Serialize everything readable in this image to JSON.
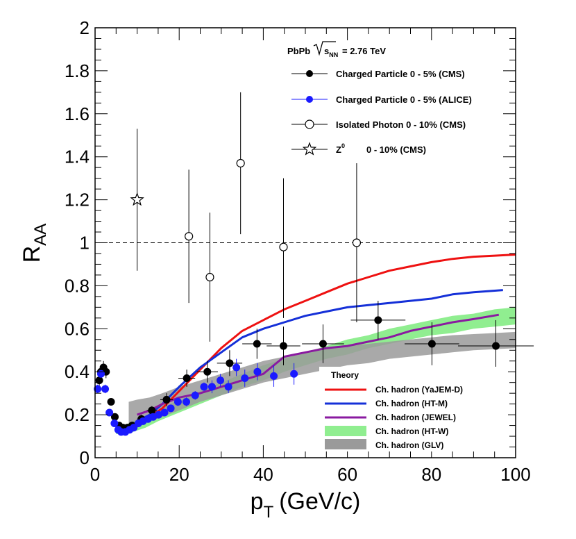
{
  "chart_data": {
    "type": "scatter",
    "xlabel": "p",
    "xlabel_sub": "T",
    "xlabel_unit": "(GeV/c)",
    "ylabel": "R",
    "ylabel_sub": "AA",
    "xlim": [
      0,
      100
    ],
    "ylim": [
      0,
      2
    ],
    "x_ticks": [
      0,
      20,
      40,
      60,
      80,
      100
    ],
    "y_ticks": [
      0,
      0.2,
      0.4,
      0.6,
      0.8,
      1,
      1.2,
      1.4,
      1.6,
      1.8,
      2
    ],
    "reference_line": 1,
    "header": "PbPb",
    "header_sqrt": "s",
    "header_sub": "NN",
    "header_value": "= 2.76 TeV",
    "theory_title": "Theory",
    "series": [
      {
        "name": "Charged Particle 0 - 5% (CMS)",
        "kind": "points",
        "marker": "filled-circle",
        "color": "#000000",
        "points": [
          {
            "x": 1.0,
            "y": 0.36,
            "ey": 0.03,
            "ex": 0
          },
          {
            "x": 1.4,
            "y": 0.4,
            "ey": 0.03,
            "ex": 0
          },
          {
            "x": 2.0,
            "y": 0.42,
            "ey": 0.03,
            "ex": 0
          },
          {
            "x": 2.6,
            "y": 0.4,
            "ey": 0.03,
            "ex": 0
          },
          {
            "x": 3.8,
            "y": 0.26,
            "ey": 0.015,
            "ex": 0
          },
          {
            "x": 4.7,
            "y": 0.19,
            "ey": 0.01,
            "ex": 0
          },
          {
            "x": 5.7,
            "y": 0.15,
            "ey": 0.01,
            "ex": 0
          },
          {
            "x": 6.6,
            "y": 0.14,
            "ey": 0.01,
            "ex": 0
          },
          {
            "x": 7.7,
            "y": 0.14,
            "ey": 0.01,
            "ex": 0
          },
          {
            "x": 8.8,
            "y": 0.15,
            "ey": 0.01,
            "ex": 0
          },
          {
            "x": 11.0,
            "y": 0.18,
            "ey": 0.02,
            "ex": 1.0
          },
          {
            "x": 13.5,
            "y": 0.22,
            "ey": 0.02,
            "ex": 1.2
          },
          {
            "x": 17.0,
            "y": 0.27,
            "ey": 0.03,
            "ex": 1.5
          },
          {
            "x": 21.8,
            "y": 0.37,
            "ey": 0.04,
            "ex": 2.0
          },
          {
            "x": 26.7,
            "y": 0.4,
            "ey": 0.05,
            "ex": 2.5
          },
          {
            "x": 32.0,
            "y": 0.44,
            "ey": 0.06,
            "ex": 3.0
          },
          {
            "x": 38.5,
            "y": 0.53,
            "ey": 0.07,
            "ex": 3.5
          },
          {
            "x": 44.8,
            "y": 0.52,
            "ey": 0.09,
            "ex": 4.0
          },
          {
            "x": 54.2,
            "y": 0.53,
            "ey": 0.09,
            "ex": 5.0
          },
          {
            "x": 67.3,
            "y": 0.64,
            "ey": 0.09,
            "ex": 6.5
          },
          {
            "x": 80.1,
            "y": 0.53,
            "ey": 0.1,
            "ex": 6.5
          },
          {
            "x": 95.3,
            "y": 0.52,
            "ey": 0.12,
            "ex": 9.0
          }
        ]
      },
      {
        "name": "Charged Particle 0 - 5% (ALICE)",
        "kind": "points",
        "marker": "filled-circle",
        "color": "#1a1aff",
        "points": [
          {
            "x": 0.6,
            "y": 0.32,
            "ey": 0.02,
            "ex": 0
          },
          {
            "x": 1.4,
            "y": 0.39,
            "ey": 0.02,
            "ex": 0
          },
          {
            "x": 2.4,
            "y": 0.32,
            "ey": 0.02,
            "ex": 0
          },
          {
            "x": 3.4,
            "y": 0.21,
            "ey": 0.01,
            "ex": 0
          },
          {
            "x": 4.6,
            "y": 0.16,
            "ey": 0.01,
            "ex": 0
          },
          {
            "x": 5.5,
            "y": 0.13,
            "ey": 0.01,
            "ex": 0
          },
          {
            "x": 6.2,
            "y": 0.12,
            "ey": 0.01,
            "ex": 0
          },
          {
            "x": 7.2,
            "y": 0.12,
            "ey": 0.01,
            "ex": 0
          },
          {
            "x": 8.2,
            "y": 0.13,
            "ey": 0.01,
            "ex": 0
          },
          {
            "x": 9.2,
            "y": 0.14,
            "ey": 0.01,
            "ex": 0
          },
          {
            "x": 10.3,
            "y": 0.16,
            "ey": 0.01,
            "ex": 0
          },
          {
            "x": 11.4,
            "y": 0.17,
            "ey": 0.01,
            "ex": 0
          },
          {
            "x": 12.6,
            "y": 0.18,
            "ey": 0.01,
            "ex": 0
          },
          {
            "x": 13.8,
            "y": 0.19,
            "ey": 0.01,
            "ex": 0
          },
          {
            "x": 15.1,
            "y": 0.2,
            "ey": 0.015,
            "ex": 0
          },
          {
            "x": 16.5,
            "y": 0.21,
            "ey": 0.015,
            "ex": 0
          },
          {
            "x": 18.0,
            "y": 0.23,
            "ey": 0.015,
            "ex": 0
          },
          {
            "x": 19.7,
            "y": 0.26,
            "ey": 0.02,
            "ex": 0
          },
          {
            "x": 21.7,
            "y": 0.26,
            "ey": 0.02,
            "ex": 0
          },
          {
            "x": 23.8,
            "y": 0.29,
            "ey": 0.02,
            "ex": 0
          },
          {
            "x": 25.9,
            "y": 0.33,
            "ey": 0.02,
            "ex": 0
          },
          {
            "x": 27.8,
            "y": 0.33,
            "ey": 0.03,
            "ex": 0
          },
          {
            "x": 29.8,
            "y": 0.36,
            "ey": 0.03,
            "ex": 0
          },
          {
            "x": 31.7,
            "y": 0.33,
            "ey": 0.03,
            "ex": 0
          },
          {
            "x": 33.6,
            "y": 0.42,
            "ey": 0.04,
            "ex": 0
          },
          {
            "x": 35.6,
            "y": 0.37,
            "ey": 0.04,
            "ex": 0
          },
          {
            "x": 38.6,
            "y": 0.4,
            "ey": 0.04,
            "ex": 0
          },
          {
            "x": 42.5,
            "y": 0.38,
            "ey": 0.05,
            "ex": 0
          },
          {
            "x": 47.3,
            "y": 0.39,
            "ey": 0.05,
            "ex": 0
          }
        ]
      },
      {
        "name": "Isolated Photon 0 - 10% (CMS)",
        "kind": "points",
        "marker": "open-circle",
        "color": "#000000",
        "points": [
          {
            "x": 22.3,
            "y": 1.03,
            "ey_lo": 0.31,
            "ey_hi": 0.31
          },
          {
            "x": 27.3,
            "y": 0.84,
            "ey_lo": 0.3,
            "ey_hi": 0.3
          },
          {
            "x": 34.6,
            "y": 1.37,
            "ey_lo": 0.33,
            "ey_hi": 0.33
          },
          {
            "x": 44.8,
            "y": 0.98,
            "ey_lo": 0.33,
            "ey_hi": 0.32
          },
          {
            "x": 62.2,
            "y": 1.0,
            "ey_lo": 0.37,
            "ey_hi": 0.37
          }
        ]
      },
      {
        "name": "Z⁰ 0 - 10% (CMS)",
        "legend_symbol": "Z",
        "legend_sup": "0",
        "legend_rest": "0 - 10% (CMS)",
        "kind": "points",
        "marker": "open-star",
        "color": "#000000",
        "points": [
          {
            "x": 10.0,
            "y": 1.2,
            "ey_lo": 0.33,
            "ey_hi": 0.33
          }
        ]
      },
      {
        "name": "Ch. hadron (YaJEM-D)",
        "kind": "line",
        "color": "#ee1111",
        "x": [
          10,
          13,
          16,
          20,
          25,
          30,
          35,
          40,
          45,
          50,
          55,
          60,
          65,
          70,
          75,
          80,
          85,
          90,
          95,
          100
        ],
        "y": [
          0.17,
          0.19,
          0.23,
          0.31,
          0.41,
          0.51,
          0.59,
          0.64,
          0.69,
          0.73,
          0.77,
          0.81,
          0.84,
          0.87,
          0.89,
          0.91,
          0.925,
          0.935,
          0.94,
          0.945
        ]
      },
      {
        "name": "Ch. hadron (HT-M)",
        "kind": "line",
        "color": "#1530d8",
        "x": [
          10,
          13,
          16,
          20,
          25,
          30,
          35,
          40,
          45,
          50,
          55,
          60,
          65,
          70,
          75,
          80,
          85,
          90,
          97
        ],
        "y": [
          0.17,
          0.2,
          0.25,
          0.33,
          0.42,
          0.49,
          0.56,
          0.6,
          0.63,
          0.66,
          0.68,
          0.7,
          0.71,
          0.72,
          0.73,
          0.74,
          0.76,
          0.77,
          0.78
        ]
      },
      {
        "name": "Ch. hadron (JEWEL)",
        "kind": "line",
        "color": "#8a1aa0",
        "x": [
          10,
          13,
          16,
          20,
          25,
          30,
          35,
          40,
          45,
          50,
          55,
          60,
          65,
          70,
          75,
          80,
          85,
          90,
          96
        ],
        "y": [
          0.2,
          0.22,
          0.25,
          0.28,
          0.3,
          0.33,
          0.36,
          0.39,
          0.47,
          0.49,
          0.51,
          0.52,
          0.54,
          0.56,
          0.59,
          0.61,
          0.63,
          0.645,
          0.665
        ]
      },
      {
        "name": "Ch. hadron (HT-W)",
        "kind": "band",
        "color": "#90ee90",
        "x": [
          5,
          7,
          9,
          12,
          15,
          20,
          25,
          30,
          35,
          40,
          45,
          50,
          55,
          60,
          65,
          70,
          75,
          80,
          85,
          90,
          95,
          100
        ],
        "ylow": [
          0.11,
          0.11,
          0.12,
          0.14,
          0.17,
          0.21,
          0.25,
          0.29,
          0.33,
          0.36,
          0.4,
          0.43,
          0.46,
          0.48,
          0.51,
          0.53,
          0.55,
          0.57,
          0.58,
          0.6,
          0.61,
          0.62
        ],
        "yhigh": [
          0.14,
          0.15,
          0.17,
          0.19,
          0.22,
          0.27,
          0.31,
          0.35,
          0.39,
          0.43,
          0.46,
          0.49,
          0.52,
          0.55,
          0.57,
          0.6,
          0.62,
          0.64,
          0.66,
          0.67,
          0.69,
          0.7
        ]
      },
      {
        "name": "Ch. hadron (GLV)",
        "kind": "band",
        "color": "#9a9a9a",
        "x": [
          8,
          10,
          13,
          16,
          20,
          25,
          30,
          35,
          40,
          45,
          50,
          55,
          60,
          65,
          70,
          75,
          80,
          85,
          90,
          95,
          100
        ],
        "ylow": [
          0.16,
          0.16,
          0.17,
          0.19,
          0.22,
          0.26,
          0.29,
          0.32,
          0.35,
          0.37,
          0.39,
          0.41,
          0.43,
          0.44,
          0.46,
          0.47,
          0.48,
          0.49,
          0.5,
          0.505,
          0.51
        ],
        "yhigh": [
          0.26,
          0.27,
          0.28,
          0.3,
          0.33,
          0.36,
          0.39,
          0.42,
          0.45,
          0.47,
          0.49,
          0.51,
          0.52,
          0.53,
          0.54,
          0.55,
          0.56,
          0.57,
          0.575,
          0.58,
          0.585
        ]
      }
    ]
  }
}
